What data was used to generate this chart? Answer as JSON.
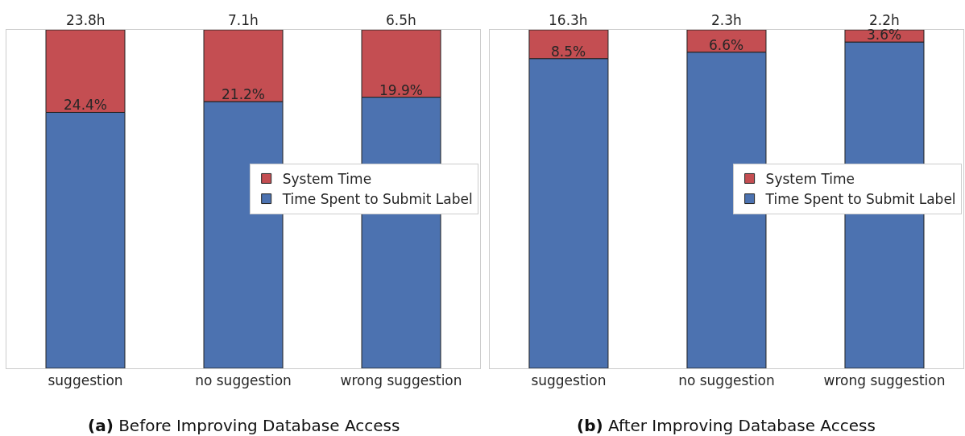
{
  "chart_data": [
    {
      "type": "bar",
      "stacked": true,
      "title": "(a) Before Improving Database Access",
      "categories": [
        "suggestion",
        "no suggestion",
        "wrong suggestion"
      ],
      "legend": "right",
      "ylim": [
        0,
        100
      ],
      "tick_labels": "x",
      "series": [
        {
          "name": "Time Spent to Submit Label",
          "color": "#4c72b0",
          "values": [
            75.6,
            78.8,
            80.1
          ]
        },
        {
          "name": "System Time",
          "color": "#c44e52",
          "values": [
            24.4,
            21.2,
            19.9
          ],
          "value_labels": [
            "24.4%",
            "21.2%",
            "19.9%"
          ]
        }
      ],
      "annotations": [
        {
          "text": "23.8h",
          "x": "suggestion",
          "y": 100
        },
        {
          "text": "7.1h",
          "x": "no suggestion",
          "y": 100
        },
        {
          "text": "6.5h",
          "x": "wrong suggestion",
          "y": 100
        }
      ]
    },
    {
      "type": "bar",
      "stacked": true,
      "title": "(b) After Improving Database Access",
      "categories": [
        "suggestion",
        "no suggestion",
        "wrong suggestion"
      ],
      "legend": "right",
      "ylim": [
        0,
        100
      ],
      "tick_labels": "x",
      "series": [
        {
          "name": "Time Spent to Submit Label",
          "color": "#4c72b0",
          "values": [
            91.5,
            93.4,
            96.4
          ]
        },
        {
          "name": "System Time",
          "color": "#c44e52",
          "values": [
            8.5,
            6.6,
            3.6
          ],
          "value_labels": [
            "8.5%",
            "6.6%",
            "3.6%"
          ]
        }
      ],
      "annotations": [
        {
          "text": "16.3h",
          "x": "suggestion",
          "y": 100
        },
        {
          "text": "2.3h",
          "x": "no suggestion",
          "y": 100
        },
        {
          "text": "2.2h",
          "x": "wrong suggestion",
          "y": 100
        }
      ]
    }
  ]
}
